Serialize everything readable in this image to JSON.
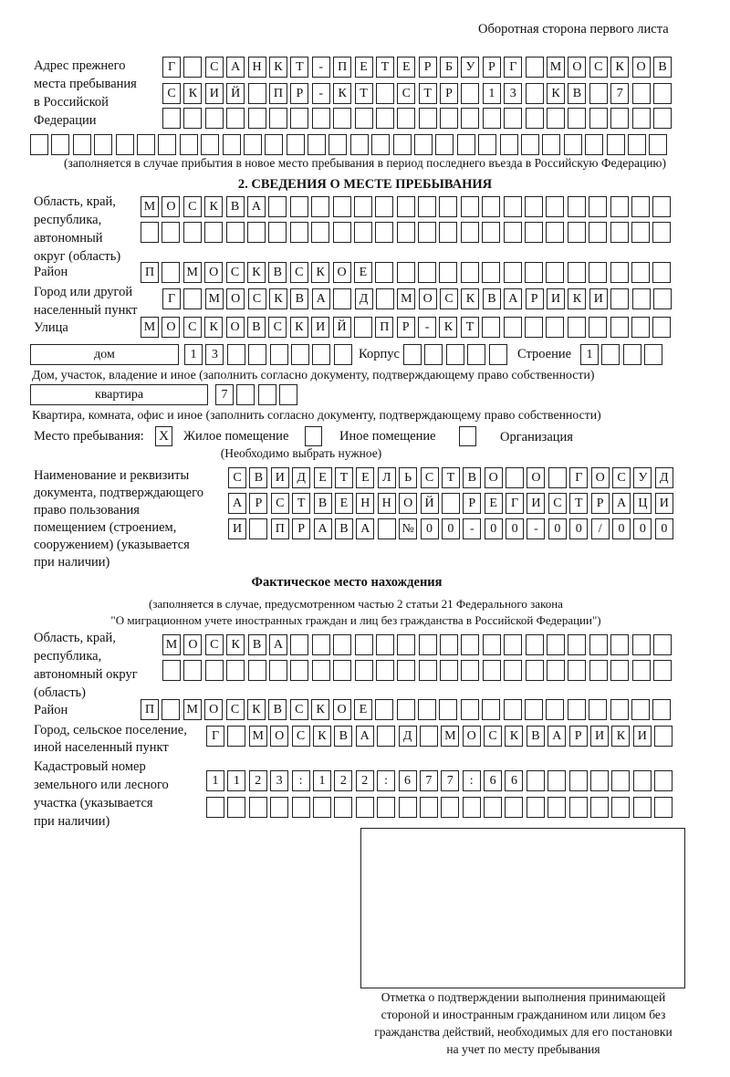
{
  "header": {
    "sheet_side": "Оборотная сторона первого листа"
  },
  "previous_address": {
    "label": [
      "Адрес прежнего",
      "места пребывания",
      "в Российской",
      "Федерации"
    ],
    "rows": [
      "Г САНКТ-ПЕТЕРБУРГ МОСКОВ",
      "СКИЙ ПР-КТ СТР 13 КВ 7",
      "",
      ""
    ],
    "note": "(заполняется в случае прибытия в новое место пребывания в период последнего въезда в Российскую Федерацию)"
  },
  "section2": {
    "title": "2. СВЕДЕНИЯ О МЕСТЕ ПРЕБЫВАНИЯ",
    "region_label": [
      "Область, край,",
      "республика,",
      "автономный",
      "округ (область)"
    ],
    "region_rows": [
      "МОСКВА",
      ""
    ],
    "district_label": "Район",
    "district": "П МОСКВСКОЕ",
    "city_label": [
      "Город или другой",
      "населенный пункт"
    ],
    "city": "Г МОСКВА Д МОСКВАРИКИ",
    "street_label": "Улица",
    "street": "МОСКОВСКИЙ ПР-КТ",
    "house_type": "дом",
    "house_number": "13",
    "korpus_label": "Корпус",
    "korpus": "",
    "building_label": "Строение",
    "building": "1",
    "house_note": "Дом, участок, владение и иное (заполнить согласно документу, подтверждающему право собственности)",
    "apartment_type": "квартира",
    "apartment_number": "7",
    "apartment_note": "Квартира, комната, офис и иное (заполнить согласно документу, подтверждающему право собственности)",
    "stay_place_label": "Место пребывания:",
    "stay_options": [
      {
        "label": "Жилое помещение",
        "mark": "X"
      },
      {
        "label": "Иное помещение",
        "mark": ""
      },
      {
        "label": "Организация",
        "mark": ""
      }
    ],
    "stay_note": "(Необходимо выбрать нужное)",
    "document_label": [
      "Наименование и реквизиты",
      "документа, подтверждающего",
      "право пользования",
      "помещением (строением,",
      "сооружением) (указывается",
      "при наличии)"
    ],
    "document_rows": [
      "СВИДЕТЕЛЬСТВО О ГОСУД",
      "АРСТВЕННОЙ РЕГИСТРАЦИ",
      "И ПРАВА №00-00-00/000"
    ]
  },
  "actual_location": {
    "title": "Фактическое место нахождения",
    "note": [
      "(заполняется в случае, предусмотренном частью 2 статьи 21 Федерального закона",
      "\"О миграционном учете иностранных граждан и лиц без гражданства в Российской Федерации\")"
    ],
    "region_label": [
      "Область, край,",
      "республика,",
      "автономный округ",
      "(область)"
    ],
    "region_rows": [
      "МОСКВА",
      ""
    ],
    "district_label": "Район",
    "district": "П МОСКВСКОЕ",
    "city_label": [
      "Город, сельское поселение,",
      "иной населенный пункт"
    ],
    "city": "Г МОСКВА Д МОСКВАРИКИ",
    "cadastral_label": [
      "Кадастровый номер",
      "земельного или лесного",
      "участка (указывается",
      "при наличии)"
    ],
    "cadastral_rows": [
      "1123:122:677:66",
      ""
    ]
  },
  "stamp": {
    "caption": [
      "Отметка о подтверждении выполнения принимающей",
      "стороной и иностранным гражданином или лицом без",
      "гражданства действий, необходимых для его постановки",
      "на учет по месту пребывания"
    ]
  }
}
